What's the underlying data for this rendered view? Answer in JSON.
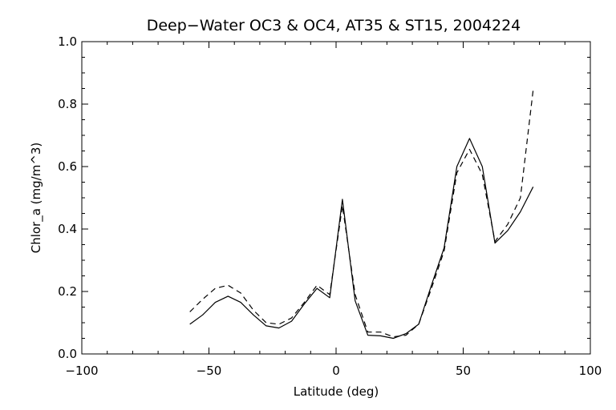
{
  "chart_data": {
    "type": "line",
    "title": "Deep−Water OC3 & OC4, AT35 & ST15, 2004224",
    "xlabel": "Latitude (deg)",
    "ylabel": "Chlor_a (mg/m^3)",
    "xlim": [
      -100,
      100
    ],
    "ylim": [
      0.0,
      1.0
    ],
    "x_ticks": [
      -100,
      -50,
      0,
      50,
      100
    ],
    "x_tick_labels": [
      "−100",
      "−50",
      "0",
      "50",
      "100"
    ],
    "y_ticks": [
      0.0,
      0.2,
      0.4,
      0.6,
      0.8,
      1.0
    ],
    "y_tick_labels": [
      "0.0",
      "0.2",
      "0.4",
      "0.6",
      "0.8",
      "1.0"
    ],
    "grid": false,
    "series": [
      {
        "line_style": "solid",
        "x": [
          -57.5,
          -52.5,
          -47.5,
          -42.5,
          -37.5,
          -32.5,
          -27.5,
          -22.5,
          -17.5,
          -12.5,
          -7.5,
          -2.5,
          2.5,
          7.5,
          12.5,
          17.5,
          22.5,
          27.5,
          32.5,
          37.5,
          42.5,
          47.5,
          52.5,
          57.5,
          62.5,
          67.5,
          72.5,
          77.5
        ],
        "y": [
          0.095,
          0.125,
          0.165,
          0.185,
          0.165,
          0.125,
          0.09,
          0.083,
          0.105,
          0.16,
          0.21,
          0.18,
          0.495,
          0.17,
          0.06,
          0.058,
          0.05,
          0.065,
          0.095,
          0.22,
          0.34,
          0.6,
          0.69,
          0.6,
          0.355,
          0.395,
          0.455,
          0.535
        ]
      },
      {
        "line_style": "dashed",
        "x": [
          -57.5,
          -52.5,
          -47.5,
          -42.5,
          -37.5,
          -32.5,
          -27.5,
          -22.5,
          -17.5,
          -12.5,
          -7.5,
          -2.5,
          2.5,
          7.5,
          12.5,
          17.5,
          22.5,
          27.5,
          32.5,
          37.5,
          42.5,
          47.5,
          52.5,
          57.5,
          62.5,
          67.5,
          72.5,
          77.5
        ],
        "y": [
          0.135,
          0.175,
          0.21,
          0.22,
          0.195,
          0.14,
          0.1,
          0.095,
          0.115,
          0.165,
          0.22,
          0.19,
          0.475,
          0.19,
          0.07,
          0.07,
          0.055,
          0.06,
          0.095,
          0.21,
          0.33,
          0.58,
          0.655,
          0.575,
          0.36,
          0.415,
          0.5,
          0.845
        ]
      }
    ]
  }
}
